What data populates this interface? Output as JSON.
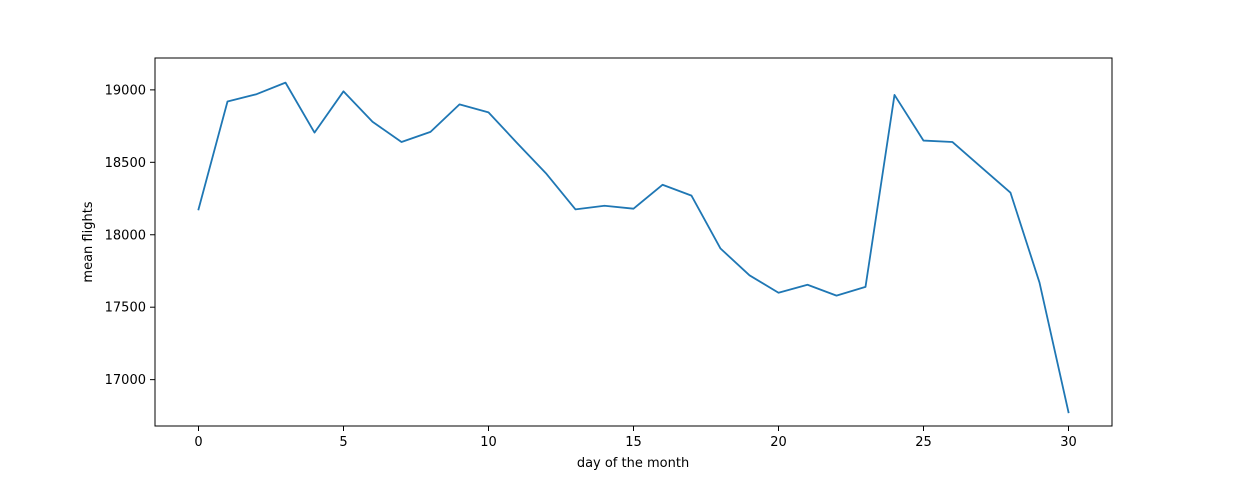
{
  "chart_data": {
    "type": "line",
    "title": "",
    "xlabel": "day of the month",
    "ylabel": "mean flights",
    "xlim": [
      -1.5,
      31.5
    ],
    "ylim": [
      16680,
      19220
    ],
    "xticks": [
      0,
      5,
      10,
      15,
      20,
      25,
      30
    ],
    "yticks": [
      17000,
      17500,
      18000,
      18500,
      19000
    ],
    "grid": false,
    "colors": {
      "line": "#1f77b4",
      "axes": "#000000",
      "background": "#ffffff"
    },
    "series": [
      {
        "x": [
          0,
          1,
          2,
          3,
          4,
          5,
          6,
          7,
          8,
          9,
          10,
          11,
          12,
          13,
          14,
          15,
          16,
          17,
          18,
          19,
          20,
          21,
          22,
          23,
          24,
          25,
          26,
          27,
          28,
          29,
          30
        ],
        "values": [
          18175,
          18920,
          18970,
          19050,
          18705,
          18990,
          18780,
          18640,
          18710,
          18900,
          18845,
          18630,
          18420,
          18175,
          18200,
          18180,
          18345,
          18270,
          17905,
          17720,
          17600,
          17655,
          17580,
          17640,
          18965,
          18650,
          18640,
          18465,
          18290,
          17670,
          16775
        ]
      }
    ]
  }
}
